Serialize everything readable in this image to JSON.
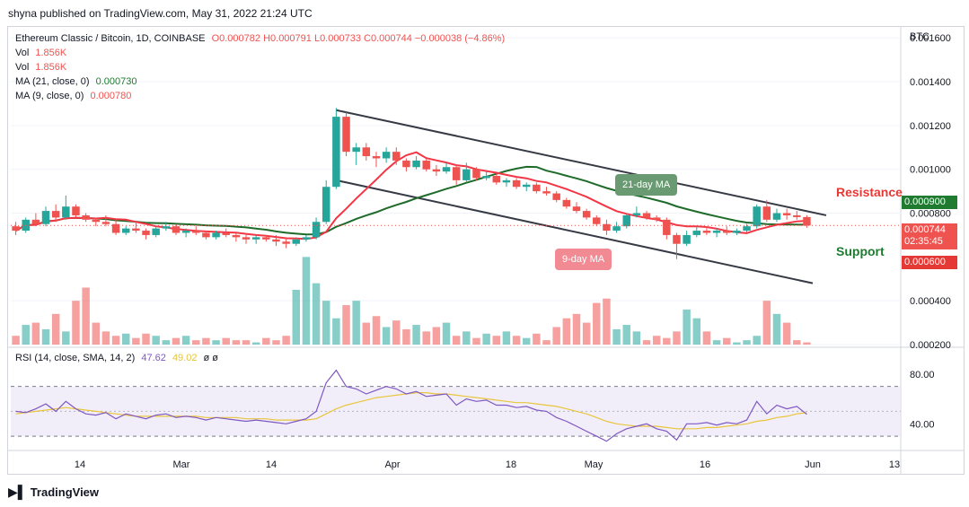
{
  "header": {
    "published": "shyna published on TradingView.com, May 31, 2022 21:24 UTC"
  },
  "legend": {
    "symbol": "Ethereum Classic / Bitcoin, 1D, COINBASE",
    "ohlc": "O0.000782  H0.000791  L0.000733  C0.000744  −0.000038 (−4.86%)",
    "vol1_label": "Vol",
    "vol1_value": "1.856K",
    "vol2_label": "Vol",
    "vol2_value": "1.856K",
    "ma21_label": "MA (21, close, 0)",
    "ma21_value": "0.000730",
    "ma9_label": "MA (9, close, 0)",
    "ma9_value": "0.000780",
    "rsi_label": "RSI (14, close, SMA, 14, 2)",
    "rsi_value": "47.62",
    "rsi_sma": "49.02",
    "rsi_extra": "ø ø"
  },
  "axis": {
    "currency": "BTC",
    "price_ticks": [
      "0.001600",
      "0.001400",
      "0.001200",
      "0.001000",
      "0.000800",
      "0.000400",
      "0.000200"
    ],
    "rsi_ticks": [
      "80.00",
      "40.00"
    ],
    "x_ticks": [
      "14",
      "Mar",
      "14",
      "Apr",
      "18",
      "May",
      "16",
      "Jun",
      "13"
    ]
  },
  "price_labels": {
    "resistance_value": "0.000900",
    "current_value": "0.000744",
    "countdown": "02:35:45",
    "support_value": "0.000600"
  },
  "annotations": {
    "resistance": "Resistance",
    "support": "Support",
    "ma21_bubble": "21-day MA",
    "ma9_bubble": "9-day MA"
  },
  "colors": {
    "up": "#26a69a",
    "down": "#ef5350",
    "ma21": "#1e6b2a",
    "ma9": "#f23645",
    "rsi": "#7e57c2",
    "rsi_sma": "#e8c53d",
    "channel": "#363a45"
  },
  "footer": {
    "brand": "TradingView"
  },
  "chart_data": {
    "type": "candlestick",
    "ylim": [
      0.0002,
      0.00165
    ],
    "candles": [
      [
        0.00074,
        0.00076,
        0.0007,
        0.00072
      ],
      [
        0.00072,
        0.00078,
        0.00071,
        0.00077
      ],
      [
        0.00077,
        0.0008,
        0.00074,
        0.00075
      ],
      [
        0.00075,
        0.00083,
        0.00074,
        0.00081
      ],
      [
        0.00081,
        0.00084,
        0.00076,
        0.00078
      ],
      [
        0.00078,
        0.00088,
        0.00077,
        0.00083
      ],
      [
        0.00083,
        0.00084,
        0.00078,
        0.00079
      ],
      [
        0.00079,
        0.0008,
        0.00076,
        0.00077
      ],
      [
        0.00077,
        0.00078,
        0.00074,
        0.00076
      ],
      [
        0.00076,
        0.00079,
        0.00074,
        0.00075
      ],
      [
        0.00075,
        0.00077,
        0.0007,
        0.00071
      ],
      [
        0.00071,
        0.00074,
        0.0007,
        0.00073
      ],
      [
        0.00073,
        0.00076,
        0.00071,
        0.00072
      ],
      [
        0.00072,
        0.00073,
        0.00068,
        0.0007
      ],
      [
        0.0007,
        0.00074,
        0.00069,
        0.00073
      ],
      [
        0.00073,
        0.00076,
        0.00072,
        0.00074
      ],
      [
        0.00074,
        0.00075,
        0.0007,
        0.00071
      ],
      [
        0.00071,
        0.00073,
        0.00069,
        0.00072
      ],
      [
        0.00072,
        0.00074,
        0.0007,
        0.00071
      ],
      [
        0.00071,
        0.00072,
        0.00068,
        0.00069
      ],
      [
        0.00069,
        0.00072,
        0.00068,
        0.00071
      ],
      [
        0.00071,
        0.00073,
        0.00069,
        0.0007
      ],
      [
        0.0007,
        0.00071,
        0.00067,
        0.00069
      ],
      [
        0.00069,
        0.00071,
        0.00066,
        0.00068
      ],
      [
        0.00068,
        0.0007,
        0.00066,
        0.00069
      ],
      [
        0.00069,
        0.0007,
        0.00067,
        0.00068
      ],
      [
        0.00068,
        0.0007,
        0.00065,
        0.00067
      ],
      [
        0.00067,
        0.00069,
        0.00064,
        0.00066
      ],
      [
        0.00066,
        0.00069,
        0.00065,
        0.00068
      ],
      [
        0.00068,
        0.0007,
        0.00067,
        0.00069
      ],
      [
        0.00069,
        0.00078,
        0.00068,
        0.00076
      ],
      [
        0.00076,
        0.00095,
        0.00075,
        0.00092
      ],
      [
        0.00092,
        0.00128,
        0.00091,
        0.00124
      ],
      [
        0.00124,
        0.00126,
        0.00106,
        0.00108
      ],
      [
        0.00108,
        0.00112,
        0.00102,
        0.0011
      ],
      [
        0.0011,
        0.00112,
        0.00104,
        0.00106
      ],
      [
        0.00106,
        0.00108,
        0.00101,
        0.00105
      ],
      [
        0.00105,
        0.0011,
        0.00103,
        0.00108
      ],
      [
        0.00108,
        0.0011,
        0.00102,
        0.00104
      ],
      [
        0.00104,
        0.00105,
        0.00099,
        0.00101
      ],
      [
        0.00101,
        0.00106,
        0.001,
        0.00104
      ],
      [
        0.00104,
        0.00105,
        0.00099,
        0.001
      ],
      [
        0.001,
        0.00102,
        0.00097,
        0.00099
      ],
      [
        0.00099,
        0.00103,
        0.00098,
        0.00101
      ],
      [
        0.00101,
        0.00102,
        0.00093,
        0.00095
      ],
      [
        0.00095,
        0.00103,
        0.00094,
        0.001
      ],
      [
        0.001,
        0.00101,
        0.00095,
        0.00096
      ],
      [
        0.00096,
        0.00099,
        0.00095,
        0.00097
      ],
      [
        0.00097,
        0.00098,
        0.00093,
        0.00094
      ],
      [
        0.00094,
        0.00096,
        0.00092,
        0.00095
      ],
      [
        0.00095,
        0.00096,
        0.00091,
        0.00092
      ],
      [
        0.00092,
        0.00094,
        0.0009,
        0.00093
      ],
      [
        0.00093,
        0.00094,
        0.00089,
        0.0009
      ],
      [
        0.0009,
        0.00092,
        0.00088,
        0.00089
      ],
      [
        0.00089,
        0.0009,
        0.00085,
        0.00086
      ],
      [
        0.00086,
        0.00087,
        0.00082,
        0.00083
      ],
      [
        0.00083,
        0.00085,
        0.0008,
        0.00081
      ],
      [
        0.00081,
        0.00082,
        0.00077,
        0.00078
      ],
      [
        0.00078,
        0.00079,
        0.00074,
        0.00075
      ],
      [
        0.00075,
        0.00077,
        0.0007,
        0.00072
      ],
      [
        0.00072,
        0.00076,
        0.00071,
        0.00074
      ],
      [
        0.00074,
        0.0008,
        0.00073,
        0.00079
      ],
      [
        0.00079,
        0.00083,
        0.00078,
        0.0008
      ],
      [
        0.0008,
        0.00081,
        0.00077,
        0.00078
      ],
      [
        0.00078,
        0.00079,
        0.00076,
        0.00077
      ],
      [
        0.00077,
        0.00078,
        0.00068,
        0.0007
      ],
      [
        0.0007,
        0.00071,
        0.00059,
        0.00066
      ],
      [
        0.00066,
        0.00072,
        0.00065,
        0.0007
      ],
      [
        0.0007,
        0.00074,
        0.00069,
        0.00072
      ],
      [
        0.00072,
        0.00074,
        0.0007,
        0.00071
      ],
      [
        0.00071,
        0.00073,
        0.00069,
        0.00072
      ],
      [
        0.00072,
        0.00074,
        0.0007,
        0.00071
      ],
      [
        0.00071,
        0.00073,
        0.0007,
        0.00072
      ],
      [
        0.00072,
        0.00075,
        0.00071,
        0.00074
      ],
      [
        0.00074,
        0.00084,
        0.00073,
        0.00083
      ],
      [
        0.00083,
        0.00086,
        0.00076,
        0.00077
      ],
      [
        0.00077,
        0.00082,
        0.00076,
        0.0008
      ],
      [
        0.0008,
        0.00082,
        0.00077,
        0.00079
      ],
      [
        0.00079,
        0.00081,
        0.00077,
        0.000782
      ],
      [
        0.000782,
        0.000791,
        0.000733,
        0.000744
      ]
    ],
    "volume": [
      0.00024,
      0.00029,
      0.0003,
      0.00027,
      0.00034,
      0.00026,
      0.0004,
      0.00046,
      0.0003,
      0.00026,
      0.00024,
      0.00025,
      0.00023,
      0.00025,
      0.00024,
      0.00022,
      0.00023,
      0.00024,
      0.00022,
      0.00023,
      0.00022,
      0.00023,
      0.00022,
      0.00022,
      0.00021,
      0.00023,
      0.00022,
      0.00024,
      0.00045,
      0.0006,
      0.00048,
      0.0004,
      0.00032,
      0.00038,
      0.0004,
      0.0003,
      0.00033,
      0.00028,
      0.00031,
      0.00027,
      0.00029,
      0.00026,
      0.00028,
      0.0003,
      0.00024,
      0.00026,
      0.00023,
      0.00025,
      0.00024,
      0.00026,
      0.00024,
      0.00023,
      0.00025,
      0.00022,
      0.00028,
      0.00032,
      0.00034,
      0.0003,
      0.00039,
      0.00041,
      0.00027,
      0.00029,
      0.00026,
      0.00022,
      0.00024,
      0.00023,
      0.00026,
      0.00036,
      0.00032,
      0.00026,
      0.00022,
      0.00023,
      0.00021,
      0.00022,
      0.00024,
      0.0004,
      0.00034,
      0.0003,
      0.00022,
      0.00021
    ],
    "rsi": [
      50,
      49,
      52,
      56,
      50,
      58,
      52,
      48,
      47,
      49,
      44,
      48,
      46,
      44,
      47,
      48,
      45,
      46,
      45,
      43,
      45,
      44,
      43,
      42,
      43,
      42,
      41,
      40,
      42,
      44,
      50,
      73,
      83,
      70,
      68,
      64,
      67,
      70,
      68,
      64,
      66,
      62,
      63,
      64,
      55,
      60,
      58,
      59,
      55,
      55,
      53,
      54,
      51,
      50,
      45,
      42,
      38,
      34,
      30,
      26,
      32,
      36,
      38,
      40,
      36,
      34,
      27,
      40,
      40,
      41,
      39,
      41,
      40,
      43,
      58,
      48,
      55,
      52,
      54,
      47.62
    ],
    "rsi_sma": [
      48,
      49,
      50,
      51,
      52,
      53,
      52,
      51,
      50,
      49,
      48,
      47,
      46,
      46,
      46,
      46,
      46,
      46,
      46,
      45,
      45,
      45,
      45,
      44,
      44,
      44,
      43,
      43,
      43,
      43,
      44,
      48,
      52,
      55,
      57,
      59,
      61,
      62,
      63,
      64,
      65,
      65,
      64,
      64,
      63,
      62,
      61,
      60,
      59,
      58,
      57,
      57,
      56,
      55,
      54,
      52,
      50,
      48,
      45,
      42,
      40,
      39,
      38,
      38,
      38,
      37,
      36,
      36,
      36,
      37,
      37,
      38,
      39,
      40,
      42,
      43,
      45,
      46,
      48,
      49.02
    ],
    "rsi_ylim": [
      20,
      95
    ]
  }
}
